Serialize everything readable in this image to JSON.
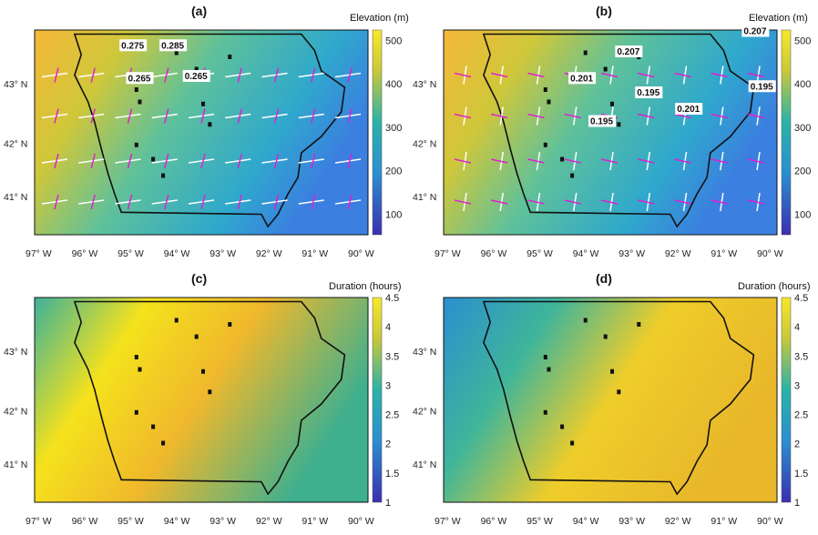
{
  "panels": [
    {
      "id": "a",
      "title": "(a)",
      "colorbar_label": "Elevation (m)",
      "colorbar_ticks": [
        "500",
        "400",
        "300",
        "200",
        "100"
      ],
      "lat_labels": [
        "43° N",
        "42° N",
        "41° N"
      ],
      "lon_labels": [
        "97° W",
        "96° W",
        "95° W",
        "94° W",
        "93° W",
        "92° W",
        "91° W",
        "90° W"
      ],
      "annotations": [
        "0.275",
        "0.285",
        "0.265",
        "0.265"
      ]
    },
    {
      "id": "b",
      "title": "(b)",
      "colorbar_label": "Elevation (m)",
      "colorbar_ticks": [
        "500",
        "400",
        "300",
        "200",
        "100"
      ],
      "lat_labels": [
        "43° N",
        "42° N",
        "41° N"
      ],
      "lon_labels": [
        "97° W",
        "96° W",
        "95° W",
        "94° W",
        "93° W",
        "92° W",
        "91° W",
        "90° W"
      ],
      "annotations": [
        "0.207",
        "0.207",
        "0.201",
        "0.195",
        "0.195",
        "0.201",
        "0.195"
      ]
    },
    {
      "id": "c",
      "title": "(c)",
      "colorbar_label": "Duration (hours)",
      "colorbar_ticks": [
        "4.5",
        "4",
        "3.5",
        "3",
        "2.5",
        "2",
        "1.5",
        "1"
      ],
      "lat_labels": [
        "43° N",
        "42° N",
        "41° N"
      ],
      "lon_labels": [
        "97° W",
        "96° W",
        "95° W",
        "94° W",
        "93° W",
        "92° W",
        "91° W",
        "90° W"
      ],
      "annotations": []
    },
    {
      "id": "d",
      "title": "(d)",
      "colorbar_label": "Duration (hours)",
      "colorbar_ticks": [
        "4.5",
        "4",
        "3.5",
        "3",
        "2.5",
        "2",
        "1.5",
        "1"
      ],
      "lat_labels": [
        "43° N",
        "42° N",
        "41° N"
      ],
      "lon_labels": [
        "97° W",
        "96° W",
        "95° W",
        "94° W",
        "93° W",
        "92° W",
        "91° W",
        "90° W"
      ],
      "annotations": []
    }
  ],
  "colors": {
    "elev_low": "#3a2fb0",
    "elev_mid": "#2ab3a8",
    "elev_high": "#f7e82a",
    "dur_low": "#3a2fb0",
    "dur_mid": "#2ea58a",
    "dur_high": "#f9f21a",
    "arrow_white": "#ffffff",
    "arrow_magenta": "#e020d0",
    "border": "#111111"
  }
}
